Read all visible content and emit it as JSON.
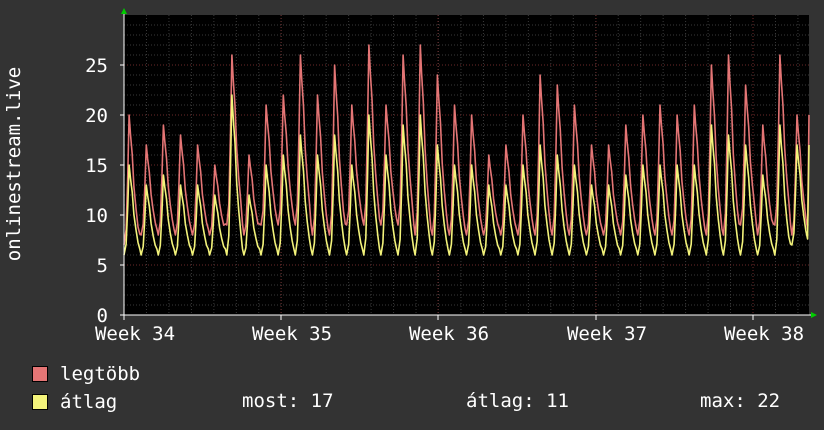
{
  "chart_data": {
    "type": "line",
    "ylabel": "onlinestream.live",
    "x_ticks": [
      "Week 34",
      "Week 35",
      "Week 36",
      "Week 37",
      "Week 38"
    ],
    "y_ticks": [
      0,
      5,
      10,
      15,
      20,
      25
    ],
    "ylim": [
      0,
      30
    ],
    "grid": true,
    "legend_placement": "bottom-left",
    "colors": {
      "background": "#333333",
      "plot_bg": "#000000",
      "grid_minor": "#3a3a3a",
      "grid_major": "#6b2a2a",
      "axis": "#ffffff",
      "arrow": "#00cc00"
    },
    "series": [
      {
        "name": "legtöbb",
        "color": "#e47575",
        "daily_peaks": [
          20,
          17,
          19,
          18,
          17,
          15,
          26,
          16,
          21,
          22,
          26,
          22,
          25,
          21,
          27,
          21,
          26,
          27,
          24,
          21,
          20,
          16,
          17,
          20,
          24,
          23,
          21,
          17,
          17,
          19,
          20,
          21,
          20,
          21,
          25,
          26,
          23,
          19,
          26,
          20
        ],
        "daily_troughs": [
          7,
          8,
          8,
          8,
          8,
          8,
          9,
          8,
          9,
          9,
          9,
          8,
          8,
          9,
          9,
          9,
          9,
          8,
          8,
          8,
          8,
          8,
          8,
          8,
          8,
          8,
          8,
          8,
          8,
          8,
          8,
          8,
          8,
          8,
          8,
          8,
          9,
          8,
          9,
          8
        ]
      },
      {
        "name": "átlag",
        "color": "#f3f37a",
        "daily_peaks": [
          15,
          13,
          14,
          13,
          13,
          12,
          22,
          12,
          15,
          16,
          18,
          16,
          18,
          15,
          20,
          16,
          19,
          20,
          17,
          15,
          15,
          13,
          13,
          15,
          17,
          16,
          15,
          13,
          13,
          14,
          15,
          15,
          15,
          15,
          19,
          18,
          17,
          14,
          19,
          17
        ],
        "daily_troughs": [
          6,
          6,
          6,
          6,
          6,
          6,
          6,
          6,
          6,
          6,
          6,
          6,
          6,
          6,
          6,
          6,
          6,
          6,
          6,
          6,
          6,
          6,
          6,
          6,
          6,
          6,
          6,
          6,
          6,
          6,
          6,
          6,
          6,
          6,
          6,
          6,
          6,
          6,
          6,
          7
        ]
      }
    ],
    "stats": {
      "most_label": "most:",
      "most_value": "17",
      "atlag_label": "átlag:",
      "atlag_value": "11",
      "max_label": "max:",
      "max_value": "22"
    }
  }
}
